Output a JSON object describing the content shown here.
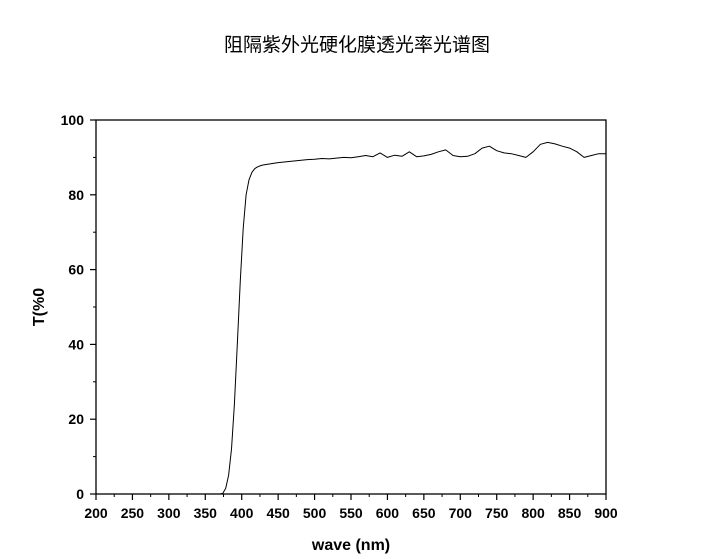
{
  "chart_data": {
    "type": "line",
    "title": "阻隔紫外光硬化膜透光率光谱图",
    "xlabel": "wave (nm)",
    "ylabel": "T(%0",
    "xlim": [
      200,
      900
    ],
    "ylim": [
      0,
      100
    ],
    "xticks": [
      200,
      250,
      300,
      350,
      400,
      450,
      500,
      550,
      600,
      650,
      700,
      750,
      800,
      850,
      900
    ],
    "yticks": [
      0,
      20,
      40,
      60,
      80,
      100
    ],
    "grid": false,
    "series": [
      {
        "x": [
          200,
          300,
          370,
          374,
          378,
          382,
          386,
          390,
          394,
          398,
          402,
          406,
          410,
          414,
          418,
          422,
          426,
          430,
          440,
          450,
          460,
          470,
          480,
          490,
          500,
          510,
          520,
          530,
          540,
          550,
          560,
          570,
          580,
          590,
          600,
          610,
          620,
          630,
          640,
          650,
          660,
          670,
          680,
          690,
          700,
          710,
          720,
          730,
          740,
          750,
          760,
          770,
          780,
          790,
          800,
          810,
          820,
          830,
          840,
          850,
          860,
          870,
          880,
          890,
          900
        ],
        "y": [
          0,
          0,
          0,
          0.2,
          1.5,
          5,
          12,
          24,
          40,
          57,
          71,
          80,
          84,
          86,
          87,
          87.5,
          87.8,
          88,
          88.3,
          88.6,
          88.8,
          89,
          89.2,
          89.4,
          89.5,
          89.7,
          89.6,
          89.8,
          90,
          89.9,
          90.2,
          90.5,
          90.2,
          91.2,
          90,
          90.6,
          90.3,
          91.5,
          90.2,
          90.4,
          90.8,
          91.5,
          92,
          90.5,
          90.2,
          90.3,
          91,
          92.5,
          93,
          91.8,
          91.2,
          91,
          90.5,
          90,
          91.5,
          93.5,
          94,
          93.6,
          93,
          92.5,
          91.5,
          90,
          90.5,
          91,
          91
        ]
      }
    ]
  }
}
